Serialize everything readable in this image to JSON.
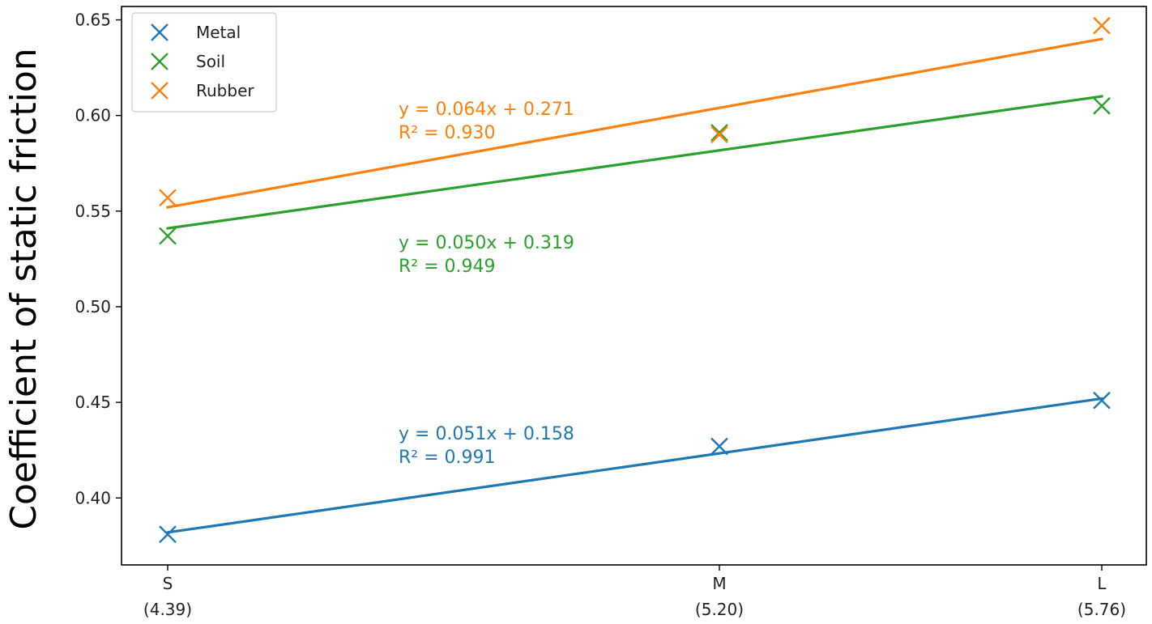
{
  "chart_data": {
    "type": "scatter",
    "title": "",
    "xlabel": "",
    "ylabel": "Coefficient of static friction",
    "x_categories": [
      {
        "label": "S",
        "sub": "(4.39)"
      },
      {
        "label": "M",
        "sub": "(5.20)"
      },
      {
        "label": "L",
        "sub": "(5.76)"
      }
    ],
    "x_positions": [
      1,
      2,
      3
    ],
    "ylim": [
      0.365,
      0.657
    ],
    "yticks": [
      "0.40",
      "0.45",
      "0.50",
      "0.55",
      "0.60",
      "0.65"
    ],
    "grid": false,
    "legend_position": "top-left",
    "marker": "x",
    "series": [
      {
        "name": "Metal",
        "color": "#1f77b4",
        "values": [
          0.381,
          0.427,
          0.451
        ],
        "fit": {
          "slope": 0.051,
          "intercept": 0.158,
          "start": 0.382,
          "end": 0.452
        },
        "equation": "y = 0.051x + 0.158",
        "r2": "R² = 0.991"
      },
      {
        "name": "Soil",
        "color": "#2ca02c",
        "values": [
          0.537,
          0.591,
          0.605
        ],
        "fit": {
          "slope": 0.05,
          "intercept": 0.319,
          "start": 0.541,
          "end": 0.61
        },
        "equation": "y = 0.050x + 0.319",
        "r2": "R² = 0.949"
      },
      {
        "name": "Rubber",
        "color": "#ff7f0e",
        "values": [
          0.557,
          0.59,
          0.647
        ],
        "fit": {
          "slope": 0.064,
          "intercept": 0.271,
          "start": 0.552,
          "end": 0.64
        },
        "equation": "y = 0.064x + 0.271",
        "r2": "R² = 0.930"
      }
    ]
  }
}
